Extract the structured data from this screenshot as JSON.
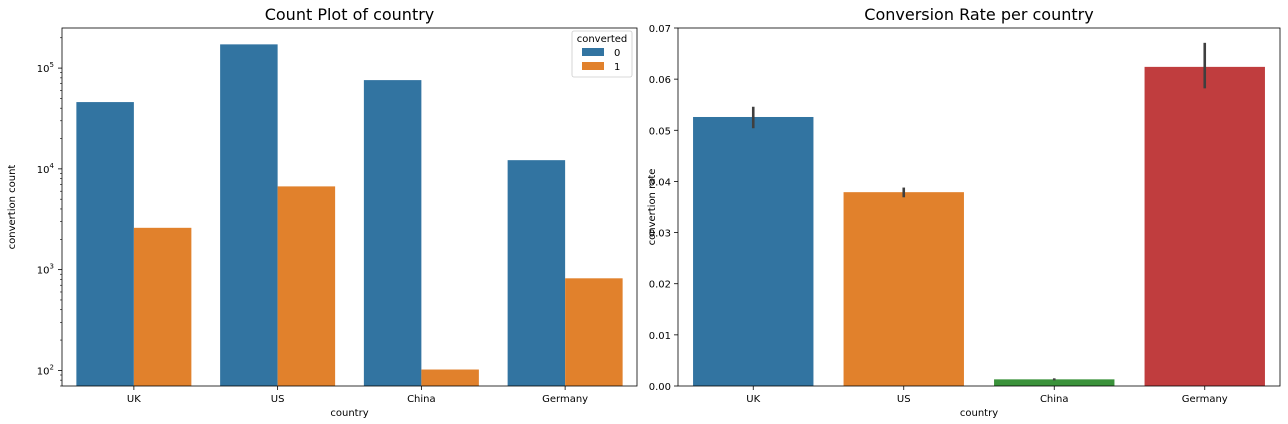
{
  "chart_data": [
    {
      "type": "bar",
      "title": "Count Plot of country",
      "xlabel": "country",
      "ylabel": "convertion count",
      "yscale": "log",
      "ylim": [
        70,
        250000
      ],
      "categories": [
        "UK",
        "US",
        "China",
        "Germany"
      ],
      "legend": {
        "title": "converted",
        "placement": "top-right"
      },
      "series": [
        {
          "name": "0",
          "color": "#3274a1",
          "values": [
            46000,
            172000,
            76000,
            12200
          ]
        },
        {
          "name": "1",
          "color": "#e1812c",
          "values": [
            2600,
            6700,
            102,
            820
          ]
        }
      ],
      "yticks": [
        {
          "value": 100,
          "base": "10",
          "exp": "2"
        },
        {
          "value": 1000,
          "base": "10",
          "exp": "3"
        },
        {
          "value": 10000,
          "base": "10",
          "exp": "4"
        },
        {
          "value": 100000,
          "base": "10",
          "exp": "5"
        }
      ]
    },
    {
      "type": "bar",
      "title": "Conversion Rate per country",
      "xlabel": "country",
      "ylabel": "convertion rate",
      "ylim": [
        0,
        0.07
      ],
      "categories": [
        "UK",
        "US",
        "China",
        "Germany"
      ],
      "values": [
        0.0526,
        0.0379,
        0.0013,
        0.0624
      ],
      "error_bars": [
        [
          0.0504,
          0.0546
        ],
        [
          0.0369,
          0.0388
        ],
        [
          0.0011,
          0.0015
        ],
        [
          0.0582,
          0.0671
        ]
      ],
      "colors": [
        "#3274a1",
        "#e1812c",
        "#3a923a",
        "#c03d3e"
      ],
      "yticks": [
        "0.00",
        "0.01",
        "0.02",
        "0.03",
        "0.04",
        "0.05",
        "0.06",
        "0.07"
      ]
    }
  ]
}
